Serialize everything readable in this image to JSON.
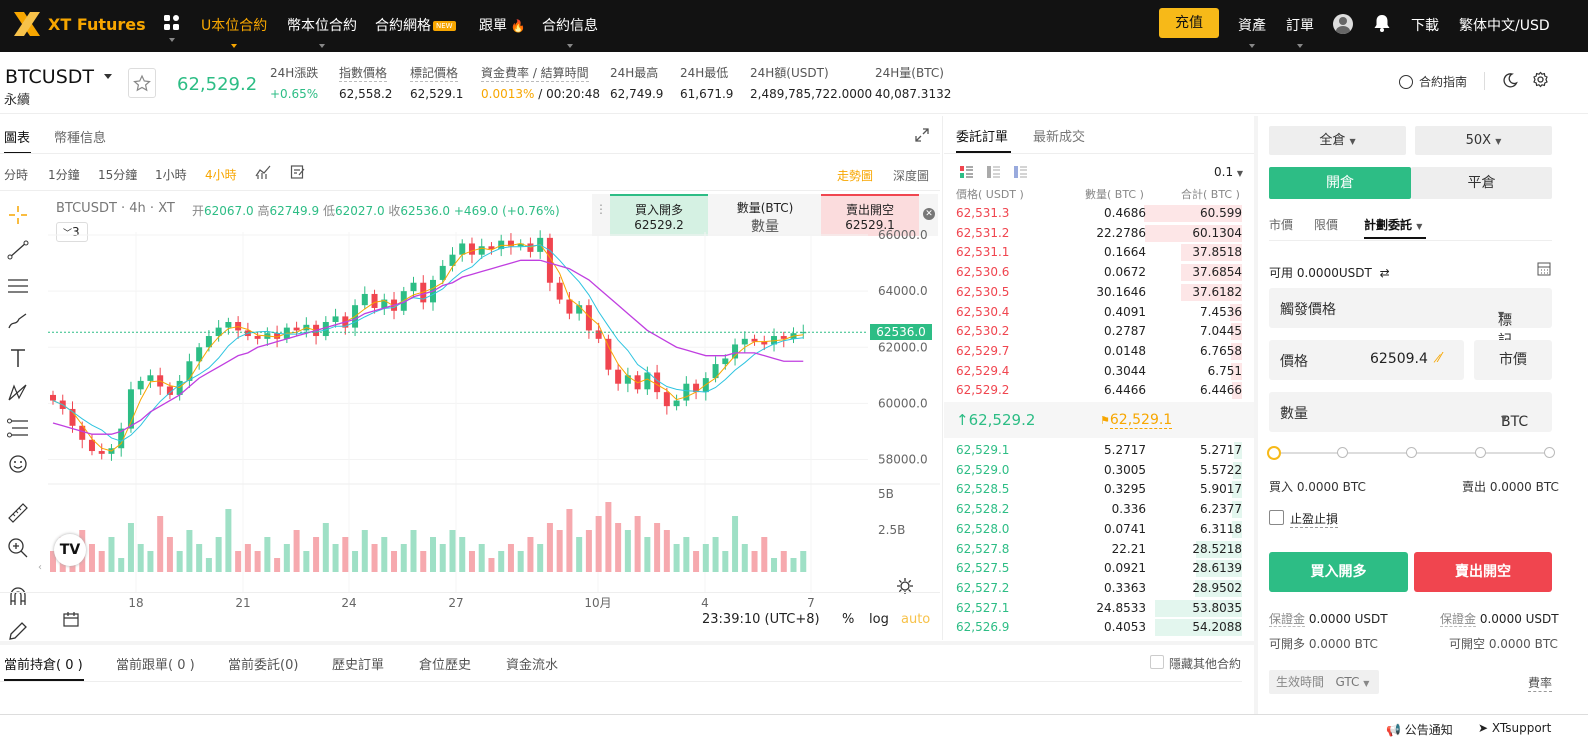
{
  "nav": {
    "logo_text": "XT Futures",
    "items": [
      "U本位合約",
      "幣本位合約",
      "合約網格",
      "跟單",
      "合約信息"
    ],
    "new_badge": "NEW",
    "deposit": "充值",
    "assets": "資產",
    "orders": "訂單",
    "download": "下載",
    "lang": "繁体中文/USD"
  },
  "ticker": {
    "symbol": "BTCUSDT",
    "type": "永續",
    "last_price": "62,529.2",
    "stats": [
      {
        "label": "24H漲跌",
        "value": "+0.65%"
      },
      {
        "label": "指數價格",
        "value": "62,558.2"
      },
      {
        "label": "標記價格",
        "value": "62,529.1"
      },
      {
        "label": "資金費率 / 結算時間",
        "value": "0.0013%",
        "value2": "/ 00:20:48"
      },
      {
        "label": "24H最高",
        "value": "62,749.9"
      },
      {
        "label": "24H最低",
        "value": "61,671.9"
      },
      {
        "label": "24H額(USDT)",
        "value": "2,489,785,722.0000"
      },
      {
        "label": "24H量(BTC)",
        "value": "40,087.3132"
      }
    ],
    "guide": "合約指南"
  },
  "chart_tabs": {
    "chart": "圖表",
    "info": "幣種信息"
  },
  "intervals": [
    "分時",
    "1分鐘",
    "15分鐘",
    "1小時",
    "4小時"
  ],
  "chart_toggles": {
    "trend": "走勢圖",
    "depth": "深度圖"
  },
  "ohlc": {
    "title": "BTCUSDT · 4h · XT",
    "o_label": "开",
    "o": "62067.0",
    "h_label": "高",
    "h": "62749.9",
    "l_label": "低",
    "l": "62027.0",
    "c_label": "收",
    "c": "62536.0",
    "chg": "+469.0 (+0.76%)",
    "indicator_count": "3"
  },
  "quick_trade": {
    "buy_label": "買入開多",
    "buy_price": "62529.2",
    "qty_label": "數量(BTC)",
    "qty_placeholder": "數量",
    "sell_label": "賣出開空",
    "sell_price": "62529.1"
  },
  "chart_data": {
    "type": "candlestick",
    "y_ticks": [
      "66000.0",
      "64000.0",
      "62000.0",
      "60000.0",
      "58000.0"
    ],
    "ylim": [
      57000,
      67000
    ],
    "x_ticks": [
      "18",
      "21",
      "24",
      "27",
      "10月",
      "4",
      "7"
    ],
    "last_price_label": "62536.0",
    "volume_ticks": [
      "5B",
      "2.5B"
    ],
    "closes": [
      60100,
      59800,
      59200,
      58700,
      58300,
      58200,
      58400,
      59100,
      60500,
      60800,
      61000,
      60600,
      60300,
      60800,
      61500,
      62000,
      62400,
      62700,
      62900,
      62600,
      62400,
      62300,
      62500,
      62300,
      62700,
      62600,
      62800,
      62400,
      62900,
      63100,
      62700,
      63500,
      63900,
      63400,
      63700,
      63300,
      64000,
      64300,
      63600,
      64400,
      64900,
      65300,
      65700,
      65300,
      65600,
      65500,
      65800,
      65600,
      65700,
      65400,
      65900,
      64300,
      63700,
      63200,
      63500,
      62600,
      62300,
      61200,
      60700,
      61000,
      60500,
      61100,
      60400,
      59900,
      60100,
      60700,
      60400,
      60900,
      61400,
      61600,
      62100,
      62300,
      62200,
      62100,
      62400,
      62300,
      62500,
      62536
    ],
    "ma_slow": [
      59300,
      59200,
      59100,
      59000,
      58900,
      58900,
      58900,
      59000,
      59200,
      59400,
      59700,
      59900,
      60100,
      60300,
      60600,
      60900,
      61100,
      61300,
      61500,
      61700,
      61800,
      62000,
      62100,
      62200,
      62300,
      62400,
      62500,
      62600,
      62700,
      62800,
      62900,
      63000,
      63200,
      63300,
      63400,
      63500,
      63600,
      63800,
      63900,
      64000,
      64200,
      64300,
      64500,
      64600,
      64700,
      64800,
      64900,
      65000,
      65100,
      65100,
      65100,
      65000,
      64900,
      64800,
      64600,
      64400,
      64100,
      63800,
      63500,
      63200,
      62900,
      62600,
      62400,
      62200,
      62000,
      61900,
      61800,
      61700,
      61700,
      61700,
      61800,
      61800,
      61800,
      61700,
      61600,
      61500,
      61500,
      61500
    ],
    "time": "23:39:10 (UTC+8)",
    "scale_opts": [
      "%",
      "log",
      "auto"
    ]
  },
  "orderbook": {
    "tabs": [
      "委託訂單",
      "最新成交"
    ],
    "precision": "0.1",
    "headers": [
      "價格( USDT )",
      "數量( BTC )",
      "合計( BTC )"
    ],
    "asks": [
      [
        "62,531.3",
        "0.4686",
        "60.599"
      ],
      [
        "62,531.2",
        "22.2786",
        "60.1304"
      ],
      [
        "62,531.1",
        "0.1664",
        "37.8518"
      ],
      [
        "62,530.6",
        "0.0672",
        "37.6854"
      ],
      [
        "62,530.5",
        "30.1646",
        "37.6182"
      ],
      [
        "62,530.4",
        "0.4091",
        "7.4536"
      ],
      [
        "62,530.2",
        "0.2787",
        "7.0445"
      ],
      [
        "62,529.7",
        "0.0148",
        "6.7658"
      ],
      [
        "62,529.4",
        "0.3044",
        "6.751"
      ],
      [
        "62,529.2",
        "6.4466",
        "6.4466"
      ]
    ],
    "mid_price": "62,529.2",
    "mark_price": "62,529.1",
    "bids": [
      [
        "62,529.1",
        "5.2717",
        "5.2717"
      ],
      [
        "62,529.0",
        "0.3005",
        "5.5722"
      ],
      [
        "62,528.5",
        "0.3295",
        "5.9017"
      ],
      [
        "62,528.2",
        "0.336",
        "6.2377"
      ],
      [
        "62,528.0",
        "0.0741",
        "6.3118"
      ],
      [
        "62,527.8",
        "22.21",
        "28.5218"
      ],
      [
        "62,527.5",
        "0.0921",
        "28.6139"
      ],
      [
        "62,527.2",
        "0.3363",
        "28.9502"
      ],
      [
        "62,527.1",
        "24.8533",
        "53.8035"
      ],
      [
        "62,526.9",
        "0.4053",
        "54.2088"
      ]
    ]
  },
  "order_form": {
    "margin_mode": "全倉",
    "leverage": "50X",
    "open": "開倉",
    "close": "平倉",
    "order_types": [
      "市價",
      "限價",
      "計劃委託"
    ],
    "available_label": "可用",
    "available": "0.0000USDT",
    "trigger_label": "觸發價格",
    "trigger_type": "標記",
    "price_label": "價格",
    "price_value": "62509.4",
    "market_btn": "市價",
    "qty_label": "數量",
    "qty_unit": "BTC",
    "buy_qty": "買入 0.0000 BTC",
    "sell_qty": "賣出 0.0000 BTC",
    "tpsl": "止盈止損",
    "buy_btn": "買入開多",
    "sell_btn": "賣出開空",
    "margin_buy_label": "保證金",
    "margin_buy": "0.0000 USDT",
    "margin_sell_label": "保證金",
    "margin_sell": "0.0000 USDT",
    "openable_buy": "可開多 0.0000 BTC",
    "openable_sell": "可開空 0.0000 BTC",
    "tif_label": "生效時間",
    "tif": "GTC",
    "fee": "費率"
  },
  "bottom_tabs": [
    "當前持倉( 0 )",
    "當前跟單( 0 )",
    "當前委託(0)",
    "歷史訂單",
    "倉位歷史",
    "資金流水"
  ],
  "hide_others": "隱藏其他合約",
  "footer": {
    "notice": "公告通知",
    "support": "XTsupport"
  }
}
